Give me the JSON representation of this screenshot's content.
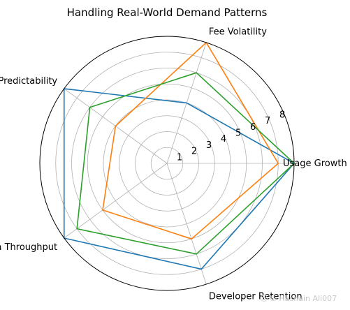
{
  "chart_data": {
    "type": "radar",
    "title": "Handling Real-World Demand Patterns",
    "axes": [
      "Usage Growth",
      "Fee Volatility",
      "Cost Predictability",
      "Data Throughput",
      "Developer Retention"
    ],
    "rmax": 8,
    "r_ticks": [
      1,
      2,
      3,
      4,
      5,
      6,
      7,
      8
    ],
    "grid": true,
    "legend": false,
    "series": [
      {
        "color": "#1f77b4",
        "values": [
          8,
          4,
          8,
          8,
          7
        ]
      },
      {
        "color": "#ff7f0e",
        "values": [
          7,
          8,
          4,
          5,
          5
        ]
      },
      {
        "color": "#2ca02c",
        "values": [
          8,
          6,
          6,
          7,
          6
        ]
      }
    ]
  },
  "watermark": {
    "text": "© Hasnain Ali007",
    "icon": "watermark-icon"
  }
}
